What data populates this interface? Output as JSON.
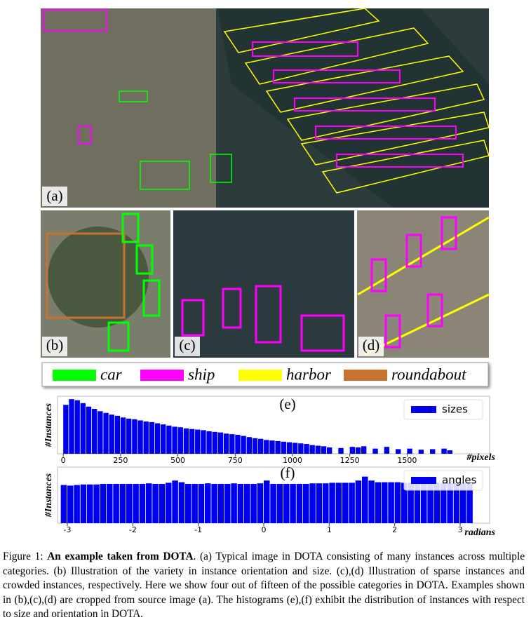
{
  "panels": [
    "(a)",
    "(b)",
    "(c)",
    "(d)"
  ],
  "legend": [
    {
      "name": "car",
      "color": "#00ff00"
    },
    {
      "name": "ship",
      "color": "#ff00ff"
    },
    {
      "name": "harbor",
      "color": "#ffff00"
    },
    {
      "name": "roundabout",
      "color": "#c8732d"
    }
  ],
  "chart_data": [
    {
      "type": "histogram",
      "title": "(e)",
      "ylabel": "#Instances",
      "xlabel": "#pixels",
      "legend": "upper right",
      "series": [
        {
          "name": "sizes",
          "color": "#0000ee",
          "bins": [
            0,
            25,
            50,
            75,
            100,
            125,
            150,
            175,
            200,
            225,
            250,
            275,
            300,
            325,
            350,
            375,
            400,
            425,
            450,
            475,
            500,
            525,
            550,
            575,
            600,
            625,
            650,
            675,
            700,
            725,
            750,
            775,
            800,
            825,
            850,
            875,
            900,
            925,
            950,
            975,
            1000,
            1025,
            1050,
            1075,
            1100,
            1125,
            1150,
            1175,
            1200,
            1225,
            1250,
            1275,
            1300,
            1325,
            1350,
            1375,
            1400,
            1425,
            1450,
            1475,
            1500,
            1525,
            1550,
            1575,
            1600,
            1625,
            1650,
            1675,
            1700
          ],
          "values": [
            85,
            95,
            93,
            88,
            82,
            78,
            74,
            71,
            68,
            66,
            63,
            61,
            60,
            58,
            56,
            55,
            53,
            51,
            49,
            47,
            46,
            44,
            43,
            42,
            41,
            39,
            38,
            37,
            35,
            34,
            33,
            31,
            29,
            27,
            26,
            24,
            23,
            22,
            21,
            20,
            19,
            18,
            17,
            15,
            14,
            13,
            11,
            0,
            10,
            0,
            12,
            11,
            13,
            0,
            9,
            0,
            12,
            0,
            8,
            0,
            9,
            0,
            7,
            0,
            8,
            0,
            9,
            6
          ]
        }
      ],
      "xlim": [
        -25,
        1860
      ],
      "ylim": [
        0,
        100
      ],
      "xticks": [
        0,
        250,
        500,
        750,
        1000,
        1250,
        1500
      ]
    },
    {
      "type": "histogram",
      "title": "(f)",
      "ylabel": "#Instances",
      "xlabel": "radians",
      "legend": "upper right",
      "series": [
        {
          "name": "angles",
          "color": "#0000ee",
          "bins": [
            -3.1,
            -3.0,
            -2.9,
            -2.8,
            -2.7,
            -2.6,
            -2.5,
            -2.4,
            -2.3,
            -2.2,
            -2.1,
            -2.0,
            -1.9,
            -1.8,
            -1.7,
            -1.6,
            -1.5,
            -1.4,
            -1.3,
            -1.2,
            -1.1,
            -1.0,
            -0.9,
            -0.8,
            -0.7,
            -0.6,
            -0.5,
            -0.4,
            -0.3,
            -0.2,
            -0.1,
            0,
            0.1,
            0.2,
            0.3,
            0.4,
            0.5,
            0.6,
            0.7,
            0.8,
            0.9,
            1.0,
            1.1,
            1.2,
            1.3,
            1.4,
            1.5,
            1.6,
            1.7,
            1.8,
            1.9,
            2.0,
            2.1,
            2.2,
            2.3,
            2.4,
            2.5,
            2.6,
            2.7,
            2.8,
            2.9,
            3.0,
            3.1,
            3.2
          ],
          "values": [
            68,
            67,
            68,
            69,
            69,
            69,
            70,
            70,
            70,
            70,
            70,
            70,
            70,
            71,
            70,
            70,
            72,
            76,
            73,
            70,
            70,
            70,
            71,
            70,
            70,
            70,
            71,
            70,
            70,
            70,
            71,
            76,
            70,
            70,
            70,
            70,
            70,
            70,
            71,
            71,
            71,
            72,
            72,
            72,
            72,
            76,
            83,
            76,
            73,
            73,
            73,
            73,
            72,
            72,
            72,
            72,
            72,
            72,
            72,
            72,
            72,
            72,
            72
          ]
        }
      ],
      "xlim": [
        -3.15,
        3.45
      ],
      "ylim": [
        0,
        100
      ],
      "xticks": [
        -3,
        -2,
        -1,
        0,
        1,
        2,
        3
      ]
    }
  ],
  "caption": {
    "figure": "Figure 1:",
    "bold": "An example taken from DOTA",
    "text": ". (a) Typical image in DOTA consisting of many instances across multiple categories.  (b) Illustration of the variety in instance orientation and size.  (c),(d) Illustration of sparse instances and crowded instances, respectively. Here we show four out of fifteen of the possible categories in DOTA. Examples shown in (b),(c),(d) are cropped from source image (a). The histograms (e),(f) exhibit the distribution of instances with respect to size and orientation in DOTA."
  }
}
